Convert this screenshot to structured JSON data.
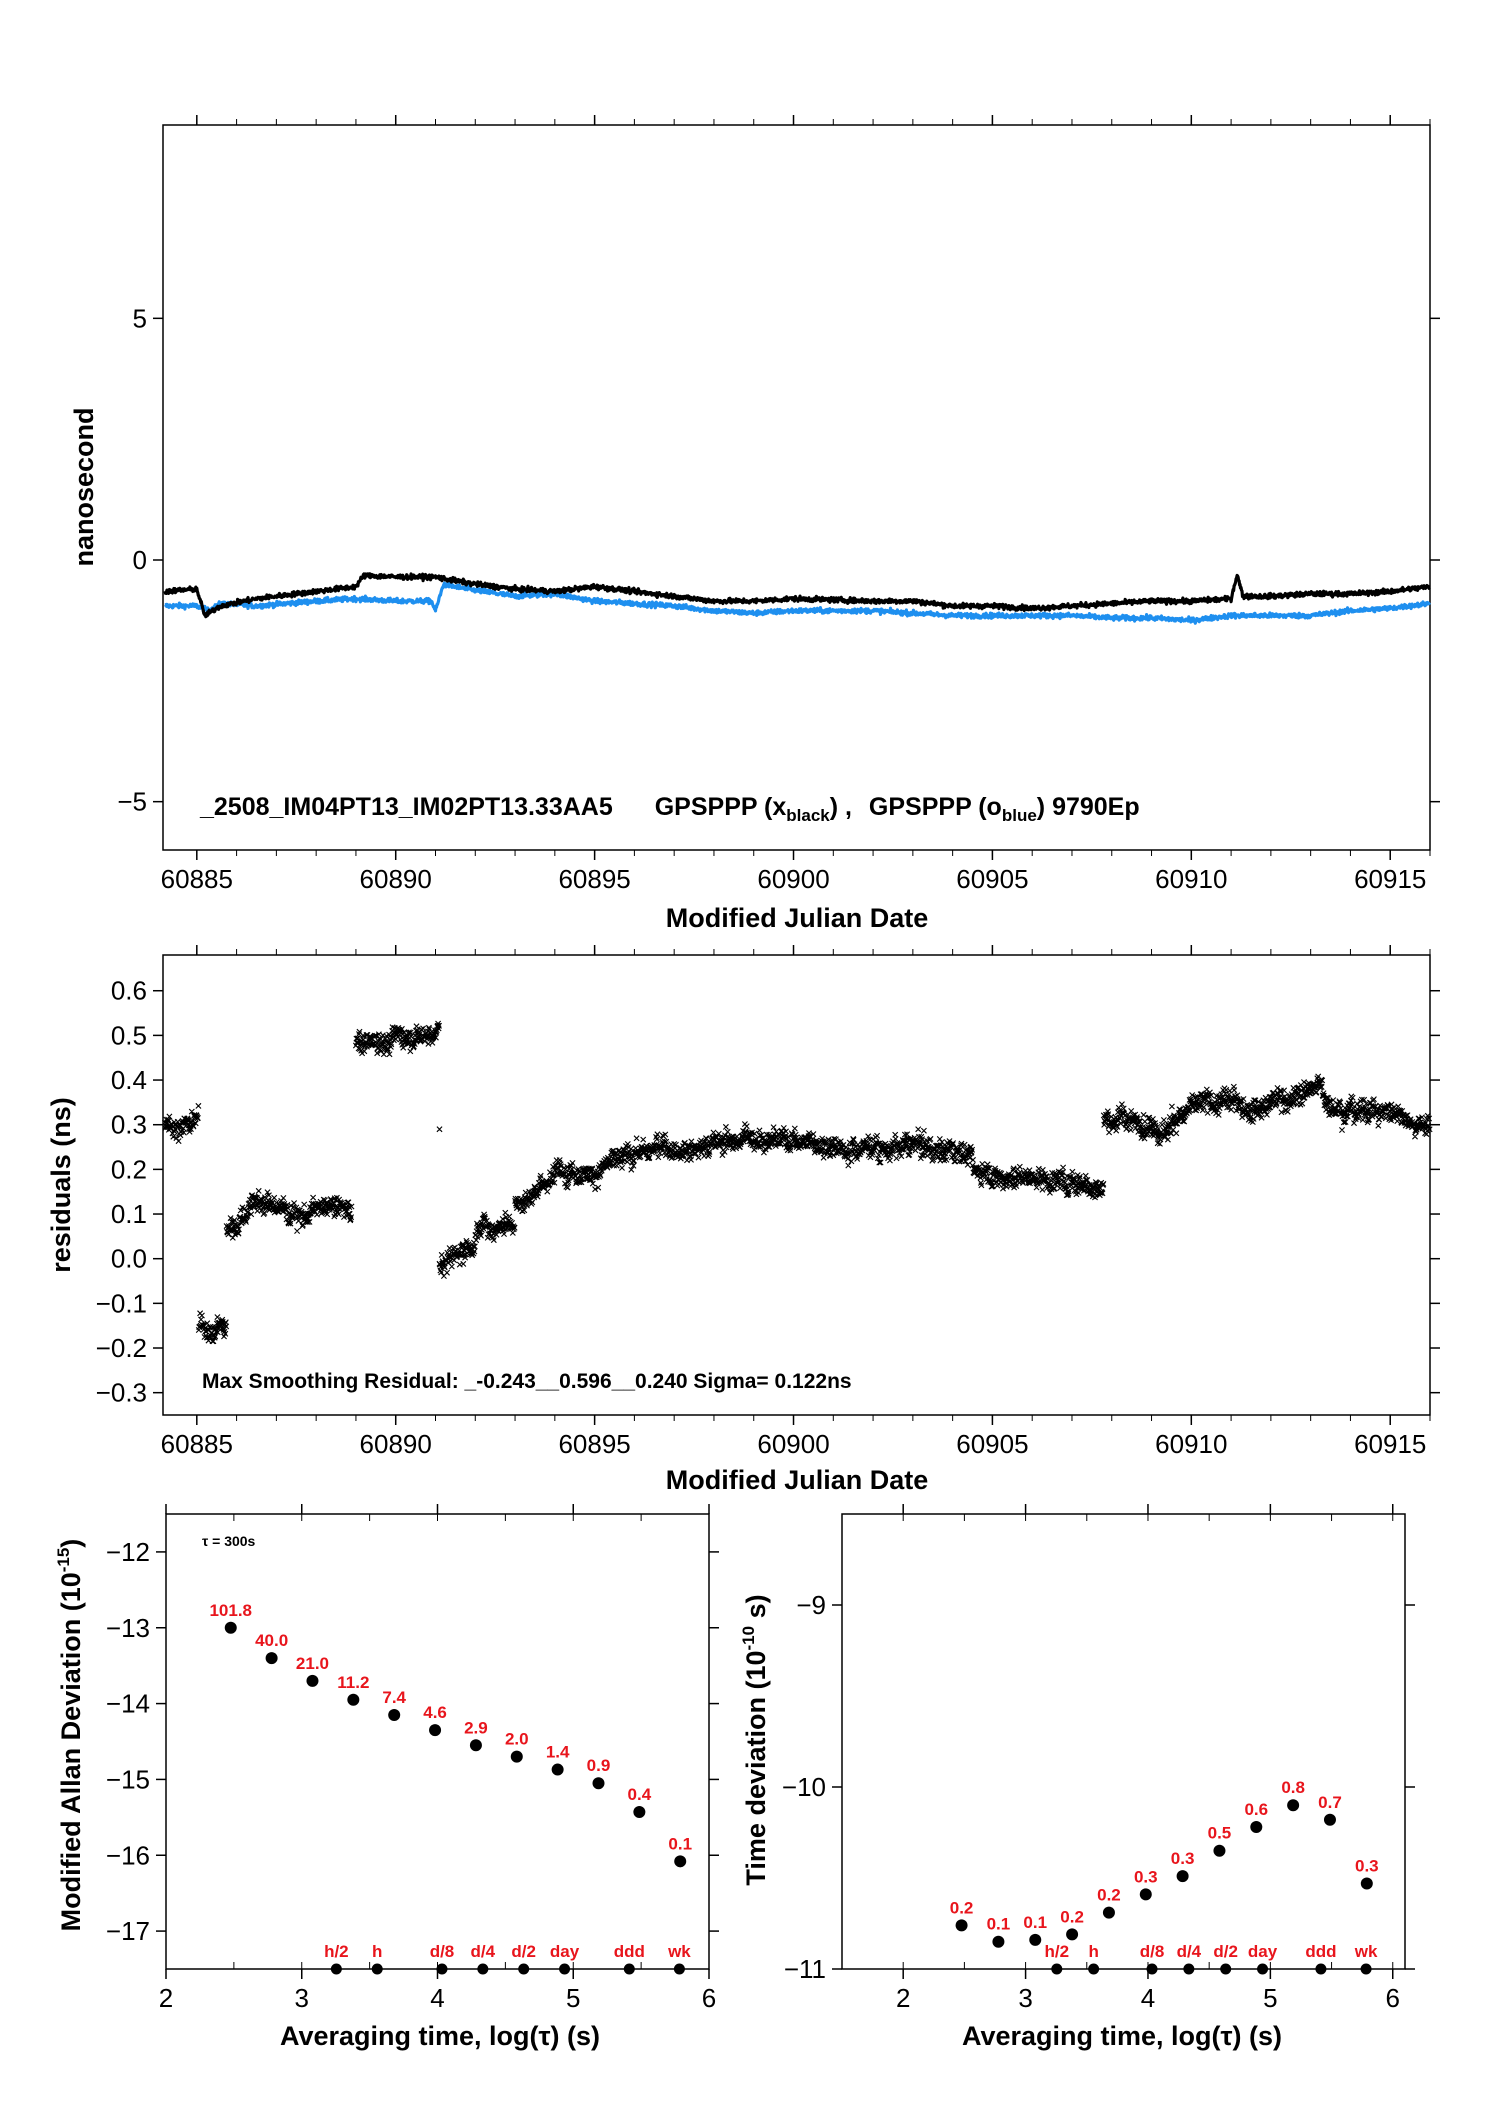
{
  "chart_data": [
    {
      "type": "line",
      "title": "",
      "xlabel": "Modified Julian Date",
      "ylabel": "nanosecond",
      "xlim": [
        60884.15,
        60916.0
      ],
      "ylim": [
        -6.0,
        9.0
      ],
      "x_ticks": [
        "60885",
        "60890",
        "60895",
        "60900",
        "60905",
        "60910",
        "60915"
      ],
      "y_ticks": [
        "−5",
        "0",
        "5"
      ],
      "annotation": {
        "id": "_2508_IM04PT13_IM02PT13.33AA5",
        "series1": "GPSPPP (x",
        "series1_sub": "black",
        "sep": ") ,",
        "series2": "GPSPPP (o",
        "series2_sub": "blue",
        "tail": ")  9790Ep"
      },
      "series": [
        {
          "color": "#000000",
          "x": [
            60884.2,
            60885.0,
            60885.2,
            60885.6,
            60886.5,
            60888.0,
            60889.0,
            60889.2,
            60890.0,
            60891.0,
            60891.3,
            60892.0,
            60893.0,
            60894.0,
            60895.0,
            60897.0,
            60898.0,
            60899.0,
            60900.0,
            60902.0,
            60903.0,
            60904.0,
            60905.0,
            60906.0,
            60907.0,
            60908.0,
            60909.0,
            60910.0,
            60911.0,
            60911.15,
            60911.3,
            60912.0,
            60913.0,
            60914.0,
            60915.0,
            60916.0
          ],
          "y": [
            -0.65,
            -0.6,
            -1.15,
            -0.95,
            -0.8,
            -0.65,
            -0.55,
            -0.32,
            -0.35,
            -0.35,
            -0.4,
            -0.5,
            -0.6,
            -0.65,
            -0.55,
            -0.75,
            -0.85,
            -0.85,
            -0.8,
            -0.85,
            -0.85,
            -0.95,
            -0.95,
            -1.0,
            -0.95,
            -0.9,
            -0.85,
            -0.85,
            -0.8,
            -0.3,
            -0.75,
            -0.75,
            -0.7,
            -0.7,
            -0.65,
            -0.55
          ]
        },
        {
          "color": "#1e8fef",
          "x": [
            60884.2,
            60885.0,
            60885.3,
            60885.6,
            60886.5,
            60888.0,
            60889.0,
            60890.0,
            60890.9,
            60891.0,
            60891.2,
            60891.8,
            60893.0,
            60894.0,
            60895.0,
            60897.0,
            60898.0,
            60899.0,
            60900.0,
            60902.0,
            60903.0,
            60904.0,
            60905.0,
            60906.0,
            60907.0,
            60908.0,
            60909.0,
            60910.0,
            60911.0,
            60912.0,
            60913.0,
            60914.0,
            60915.0,
            60916.0
          ],
          "y": [
            -0.95,
            -0.95,
            -1.05,
            -0.9,
            -0.95,
            -0.85,
            -0.8,
            -0.85,
            -0.85,
            -1.05,
            -0.5,
            -0.6,
            -0.75,
            -0.7,
            -0.85,
            -0.95,
            -1.05,
            -1.1,
            -1.05,
            -1.05,
            -1.1,
            -1.15,
            -1.15,
            -1.15,
            -1.15,
            -1.2,
            -1.2,
            -1.25,
            -1.15,
            -1.15,
            -1.15,
            -1.05,
            -1.0,
            -0.9
          ]
        }
      ]
    },
    {
      "type": "scatter",
      "title": "",
      "xlabel": "Modified Julian Date",
      "ylabel": "residuals (ns)",
      "xlim": [
        60884.15,
        60916.0
      ],
      "ylim": [
        -0.35,
        0.68
      ],
      "x_ticks": [
        "60885",
        "60890",
        "60895",
        "60900",
        "60905",
        "60910",
        "60915"
      ],
      "y_ticks": [
        "−0.3",
        "−0.2",
        "−0.1",
        "0.0",
        "0.1",
        "0.2",
        "0.3",
        "0.4",
        "0.5",
        "0.6"
      ],
      "annotation": "Max Smoothing Residual: _-0.243__0.596__0.240  Sigma= 0.122ns",
      "marker": "x",
      "color": "#000000",
      "segments": [
        {
          "x": [
            60884.2,
            60885.05
          ],
          "y": [
            0.31,
            0.3
          ]
        },
        {
          "x": [
            60885.05,
            60885.75
          ],
          "y": [
            -0.15,
            -0.15
          ]
        },
        {
          "x": [
            60885.75,
            60886.5
          ],
          "y": [
            0.06,
            0.14
          ]
        },
        {
          "x": [
            60886.5,
            60888.9
          ],
          "y": [
            0.12,
            0.1
          ]
        },
        {
          "x": [
            60889.0,
            60891.1
          ],
          "y": [
            0.48,
            0.52
          ]
        },
        {
          "x": [
            60891.1,
            60892.0
          ],
          "y": [
            -0.02,
            0.04
          ]
        },
        {
          "x": [
            60892.0,
            60893.0
          ],
          "y": [
            0.05,
            0.1
          ]
        },
        {
          "x": [
            60893.0,
            60894.0
          ],
          "y": [
            0.12,
            0.18
          ]
        },
        {
          "x": [
            60894.0,
            60896.0
          ],
          "y": [
            0.2,
            0.22
          ]
        },
        {
          "x": [
            60896.0,
            60899.5
          ],
          "y": [
            0.24,
            0.28
          ]
        },
        {
          "x": [
            60899.5,
            60904.5
          ],
          "y": [
            0.27,
            0.24
          ]
        },
        {
          "x": [
            60904.5,
            60907.8
          ],
          "y": [
            0.2,
            0.17
          ]
        },
        {
          "x": [
            60907.8,
            60909.5
          ],
          "y": [
            0.31,
            0.3
          ]
        },
        {
          "x": [
            60909.5,
            60913.3
          ],
          "y": [
            0.32,
            0.38
          ]
        },
        {
          "x": [
            60913.3,
            60916.0
          ],
          "y": [
            0.36,
            0.31
          ]
        }
      ],
      "isolated_points": [
        {
          "x": 60891.1,
          "y": 0.29
        }
      ]
    },
    {
      "type": "scatter",
      "title": "",
      "xlabel": "Averaging time, log(τ) (s)",
      "ylabel": "Modified Allan Deviation (10",
      "ylabel_sup": "-15",
      "ylabel_tail": ")",
      "xlim": [
        2,
        6
      ],
      "ylim": [
        -17.5,
        -11.5
      ],
      "x_ticks": [
        "2",
        "3",
        "4",
        "5",
        "6"
      ],
      "y_ticks": [
        "−17",
        "−16",
        "−15",
        "−14",
        "−13",
        "−12"
      ],
      "tau_label": "τ = 300s",
      "x": [
        2.477,
        2.778,
        3.079,
        3.38,
        3.681,
        3.982,
        4.283,
        4.584,
        4.885,
        5.186,
        5.487,
        5.788
      ],
      "y": [
        -13.0,
        -13.4,
        -13.7,
        -13.95,
        -14.15,
        -14.35,
        -14.55,
        -14.7,
        -14.87,
        -15.05,
        -15.43,
        -16.08
      ],
      "point_labels": [
        "101.8",
        "40.0",
        "21.0",
        "11.2",
        "7.4",
        "4.6",
        "2.9",
        "2.0",
        "1.4",
        "0.9",
        "0.4",
        "0.1"
      ],
      "markers": [
        {
          "label": "h/2",
          "x": 3.255
        },
        {
          "label": "h",
          "x": 3.556
        },
        {
          "label": "d/8",
          "x": 4.033
        },
        {
          "label": "d/4",
          "x": 4.334
        },
        {
          "label": "d/2",
          "x": 4.635
        },
        {
          "label": "day",
          "x": 4.936
        },
        {
          "label": "ddd",
          "x": 5.413
        },
        {
          "label": "wk",
          "x": 5.782
        }
      ]
    },
    {
      "type": "scatter",
      "title": "",
      "xlabel": "Averaging time, log(τ) (s)",
      "ylabel": "Time deviation (10",
      "ylabel_sup": "-10",
      "ylabel_tail": " s)",
      "xlim": [
        1.5,
        6.1
      ],
      "ylim": [
        -11.0,
        -8.5
      ],
      "x_ticks": [
        "2",
        "3",
        "4",
        "5",
        "6"
      ],
      "y_ticks": [
        "−11",
        "−10",
        "−9"
      ],
      "x": [
        2.477,
        2.778,
        3.079,
        3.38,
        3.681,
        3.982,
        4.283,
        4.584,
        4.885,
        5.186,
        5.487,
        5.788
      ],
      "y": [
        -10.76,
        -10.85,
        -10.84,
        -10.81,
        -10.69,
        -10.59,
        -10.49,
        -10.35,
        -10.22,
        -10.1,
        -10.18,
        -10.53
      ],
      "point_labels": [
        "0.2",
        "0.1",
        "0.1",
        "0.2",
        "0.2",
        "0.3",
        "0.3",
        "0.5",
        "0.6",
        "0.8",
        "0.7",
        "0.3"
      ],
      "markers": [
        {
          "label": "h/2",
          "x": 3.255
        },
        {
          "label": "h",
          "x": 3.556
        },
        {
          "label": "d/8",
          "x": 4.033
        },
        {
          "label": "d/4",
          "x": 4.334
        },
        {
          "label": "d/2",
          "x": 4.635
        },
        {
          "label": "day",
          "x": 4.936
        },
        {
          "label": "ddd",
          "x": 5.413
        },
        {
          "label": "wk",
          "x": 5.782
        }
      ]
    }
  ]
}
